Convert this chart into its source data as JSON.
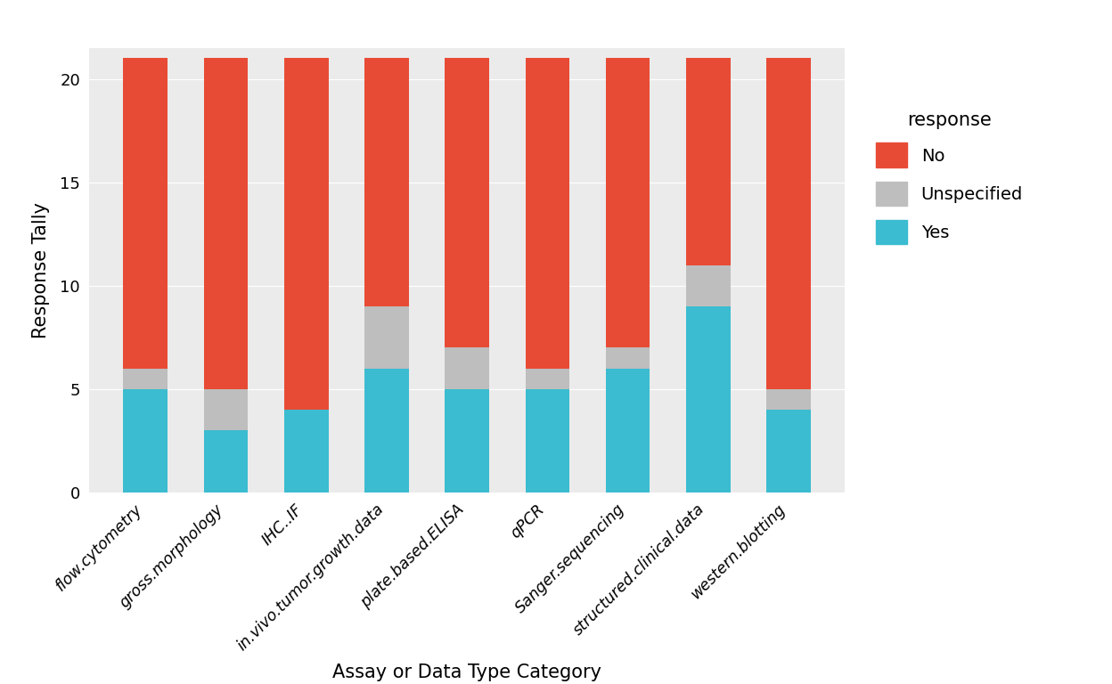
{
  "categories": [
    "flow.cytometry",
    "gross.morphology",
    "IHC..IF",
    "in.vivo.tumor.growth.data",
    "plate.based.ELISA",
    "qPCR",
    "Sanger.sequencing",
    "structured.clinical.data",
    "western.blotting"
  ],
  "yes": [
    5,
    3,
    4,
    6,
    5,
    5,
    6,
    9,
    4
  ],
  "unspecified": [
    1,
    2,
    0,
    3,
    2,
    1,
    1,
    2,
    1
  ],
  "no": [
    15,
    16,
    17,
    12,
    14,
    15,
    14,
    10,
    16
  ],
  "colors": {
    "Yes": "#3BBCD0",
    "Unspecified": "#BEBEBE",
    "No": "#E84B35"
  },
  "xlabel": "Assay or Data Type Category",
  "ylabel": "Response Tally",
  "legend_title": "response",
  "ylim": [
    0,
    21.5
  ],
  "yticks": [
    0,
    5,
    10,
    15,
    20
  ],
  "plot_bg_color": "#EBEBEB",
  "fig_bg_color": "#FFFFFF",
  "grid_color": "#FFFFFF",
  "bar_width": 0.55
}
